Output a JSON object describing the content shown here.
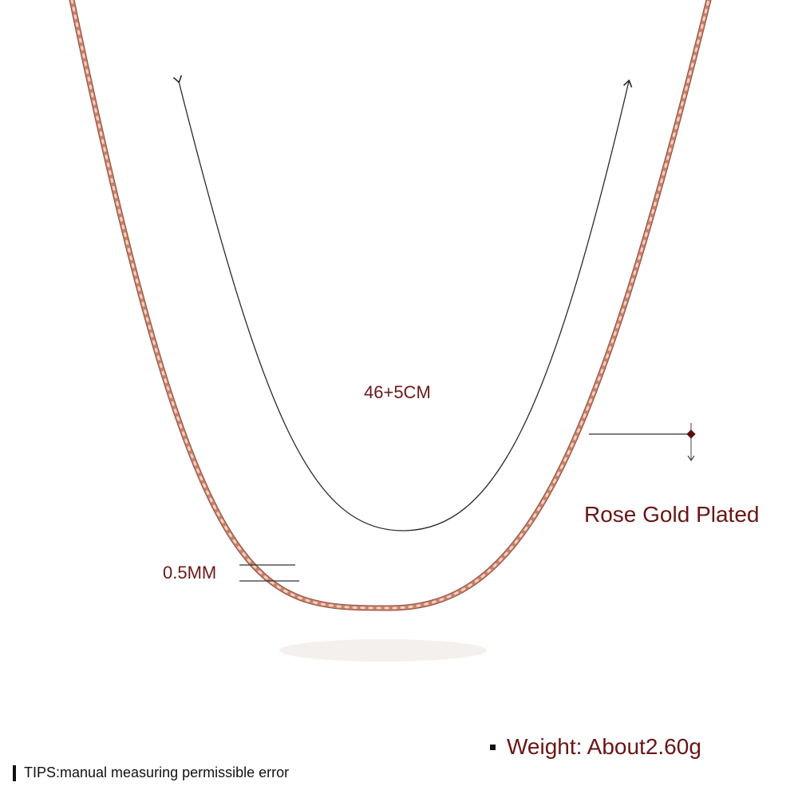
{
  "product": {
    "length": "46+5CM",
    "thickness": "0.5MM",
    "plating": "Rose Gold Plated",
    "weight": "Weight: About2.60g",
    "tips": "TIPS:manual measuring permissible error"
  },
  "colors": {
    "chain": "#c9826c",
    "chain_dark": "#8e4d3c",
    "chain_light": "#f3d2c4",
    "label_text": "#6a1515",
    "guide_line": "#333333",
    "marker": "#5a0f0f"
  }
}
